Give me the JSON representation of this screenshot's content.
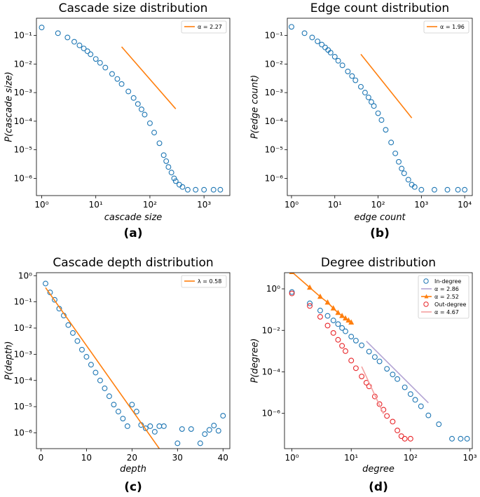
{
  "chart_data": [
    {
      "id": "a",
      "panel_label": "(a)",
      "type": "scatter",
      "title": "Cascade size distribution",
      "xlabel": "cascade size",
      "ylabel": "P(cascade size)",
      "xscale": "log",
      "yscale": "log",
      "xlim": [
        0.8,
        3000
      ],
      "ylim": [
        2.5e-07,
        0.4
      ],
      "xticks": [
        1,
        10,
        100,
        1000
      ],
      "xtick_labels": [
        "10⁰",
        "10¹",
        "10²",
        "10³"
      ],
      "yticks": [
        1e-06,
        1e-05,
        0.0001,
        0.001,
        0.01,
        0.1
      ],
      "ytick_labels": [
        "10⁻⁶",
        "10⁻⁵",
        "10⁻⁴",
        "10⁻³",
        "10⁻²",
        "10⁻¹"
      ],
      "legend": {
        "placement": "top-right",
        "entries": [
          {
            "label": "α = 2.27",
            "color": "#ff7f0e",
            "marker": "line"
          }
        ]
      },
      "series": [
        {
          "name": "empirical",
          "kind": "empirical",
          "color": "#1f77b4",
          "marker": "circle",
          "x": [
            1,
            2,
            3,
            4,
            5,
            6,
            7,
            8,
            10,
            12,
            15,
            20,
            25,
            30,
            40,
            50,
            60,
            70,
            80,
            100,
            120,
            150,
            180,
            200,
            220,
            250,
            280,
            300,
            350,
            400,
            500,
            700,
            1000,
            1500,
            2000
          ],
          "y": [
            0.19,
            0.12,
            0.085,
            0.06,
            0.045,
            0.035,
            0.028,
            0.022,
            0.015,
            0.011,
            0.0075,
            0.0045,
            0.003,
            0.002,
            0.0011,
            0.00065,
            0.0004,
            0.00026,
            0.00017,
            8.5e-05,
            4e-05,
            1.7e-05,
            6.5e-06,
            4e-06,
            2.5e-06,
            1.6e-06,
            1e-06,
            8e-07,
            6e-07,
            5e-07,
            4e-07,
            4e-07,
            4e-07,
            4e-07,
            4e-07
          ]
        },
        {
          "name": "power-law fit",
          "kind": "fit",
          "color": "#ff7f0e",
          "x": [
            30,
            300
          ],
          "y": [
            0.04,
            0.00027
          ]
        }
      ]
    },
    {
      "id": "b",
      "panel_label": "(b)",
      "type": "scatter",
      "title": "Edge count distribution",
      "xlabel": "edge count",
      "ylabel": "P(edge count)",
      "xscale": "log",
      "yscale": "log",
      "xlim": [
        0.8,
        15000
      ],
      "ylim": [
        2.5e-07,
        0.4
      ],
      "xticks": [
        1,
        10,
        100,
        1000,
        10000
      ],
      "xtick_labels": [
        "10⁰",
        "10¹",
        "10²",
        "10³",
        "10⁴"
      ],
      "yticks": [
        1e-06,
        1e-05,
        0.0001,
        0.001,
        0.01,
        0.1
      ],
      "ytick_labels": [
        "10⁻⁶",
        "10⁻⁵",
        "10⁻⁴",
        "10⁻³",
        "10⁻²",
        "10⁻¹"
      ],
      "legend": {
        "placement": "top-right",
        "entries": [
          {
            "label": "α = 1.96",
            "color": "#ff7f0e",
            "marker": "line"
          }
        ]
      },
      "series": [
        {
          "name": "empirical",
          "kind": "empirical",
          "color": "#1f77b4",
          "marker": "circle",
          "x": [
            1,
            2,
            3,
            4,
            5,
            6,
            7,
            8,
            10,
            12,
            15,
            20,
            25,
            30,
            40,
            50,
            60,
            70,
            80,
            100,
            120,
            150,
            200,
            250,
            300,
            350,
            400,
            500,
            600,
            700,
            1000,
            2000,
            4000,
            7000,
            10000
          ],
          "y": [
            0.2,
            0.12,
            0.085,
            0.062,
            0.048,
            0.038,
            0.031,
            0.025,
            0.018,
            0.013,
            0.009,
            0.0055,
            0.0038,
            0.0027,
            0.0016,
            0.001,
            0.00068,
            0.00047,
            0.00034,
            0.00019,
            0.00011,
            5e-05,
            1.8e-05,
            7.5e-06,
            3.8e-06,
            2.2e-06,
            1.5e-06,
            9e-07,
            6e-07,
            5e-07,
            4e-07,
            4e-07,
            4e-07,
            4e-07,
            4e-07
          ]
        },
        {
          "name": "power-law fit",
          "kind": "fit",
          "color": "#ff7f0e",
          "x": [
            40,
            600
          ],
          "y": [
            0.022,
            0.00013
          ]
        }
      ]
    },
    {
      "id": "c",
      "panel_label": "(c)",
      "type": "scatter",
      "title": "Cascade depth distribution",
      "xlabel": "depth",
      "ylabel": "P(depth)",
      "xscale": "linear",
      "yscale": "log",
      "xlim": [
        -1,
        41.5
      ],
      "ylim": [
        2.5e-07,
        1.3
      ],
      "xticks": [
        0,
        10,
        20,
        30,
        40
      ],
      "xtick_labels": [
        "0",
        "10",
        "20",
        "30",
        "40"
      ],
      "yticks": [
        1e-06,
        1e-05,
        0.0001,
        0.001,
        0.01,
        0.1,
        1
      ],
      "ytick_labels": [
        "10⁻⁶",
        "10⁻⁵",
        "10⁻⁴",
        "10⁻³",
        "10⁻²",
        "10⁻¹",
        "10⁰"
      ],
      "legend": {
        "placement": "top-right",
        "entries": [
          {
            "label": "λ = 0.58",
            "color": "#ff7f0e",
            "marker": "line"
          }
        ]
      },
      "series": [
        {
          "name": "empirical",
          "kind": "empirical",
          "color": "#1f77b4",
          "marker": "circle",
          "x": [
            1,
            2,
            3,
            4,
            5,
            6,
            7,
            8,
            9,
            10,
            11,
            12,
            13,
            14,
            15,
            16,
            17,
            18,
            19,
            20,
            21,
            22,
            23,
            24,
            25,
            26,
            27,
            30,
            31,
            33,
            35,
            36,
            37,
            38,
            39,
            40
          ],
          "y": [
            0.5,
            0.23,
            0.12,
            0.055,
            0.03,
            0.013,
            0.0065,
            0.0032,
            0.0015,
            0.0008,
            0.0004,
            0.0002,
            0.0001,
            5e-05,
            2.5e-05,
            1.2e-05,
            6.5e-06,
            3.5e-06,
            1.8e-06,
            1.2e-05,
            6.5e-06,
            2e-06,
            1.5e-06,
            1.8e-06,
            1.1e-06,
            1.8e-06,
            1.8e-06,
            4e-07,
            1.4e-06,
            1.4e-06,
            4e-07,
            9e-07,
            1.3e-06,
            1.9e-06,
            1.2e-06,
            4.5e-06
          ]
        },
        {
          "name": "exponential fit",
          "kind": "fit",
          "color": "#ff7f0e",
          "x": [
            1,
            26
          ],
          "y": [
            0.35,
            2.5e-07
          ]
        }
      ]
    },
    {
      "id": "d",
      "panel_label": "(d)",
      "type": "scatter",
      "title": "Degree distribution",
      "xlabel": "degree",
      "ylabel": "P(degree)",
      "xscale": "log",
      "yscale": "log",
      "xlim": [
        0.75,
        1100
      ],
      "ylim": [
        2e-08,
        6
      ],
      "xticks": [
        1,
        10,
        100,
        1000
      ],
      "xtick_labels": [
        "10⁰",
        "10¹",
        "10²",
        "10³"
      ],
      "yticks": [
        1e-06,
        0.0001,
        0.01,
        1
      ],
      "ytick_labels": [
        "10⁻⁶",
        "10⁻⁴",
        "10⁻²",
        "10⁰"
      ],
      "legend": {
        "placement": "top-right",
        "entries": [
          {
            "label": "In-degree",
            "color": "#1f77b4",
            "marker": "circle"
          },
          {
            "label": "α = 2.86",
            "color": "#b3a4d4",
            "marker": "line"
          },
          {
            "label": "α = 2.52",
            "color": "#ff7f0e",
            "marker": "triangle-line"
          },
          {
            "label": "Out-degree",
            "color": "#e8262a",
            "marker": "circle"
          },
          {
            "label": "α = 4.67",
            "color": "#f4a0a0",
            "marker": "line"
          }
        ]
      },
      "series": [
        {
          "name": "In-degree",
          "kind": "empirical",
          "color": "#1f77b4",
          "marker": "circle",
          "x": [
            1,
            2,
            3,
            4,
            5,
            6,
            7,
            8,
            10,
            12,
            15,
            20,
            25,
            30,
            40,
            50,
            60,
            80,
            100,
            120,
            150,
            200,
            300,
            500,
            700,
            900
          ],
          "y": [
            0.7,
            0.2,
            0.09,
            0.05,
            0.03,
            0.02,
            0.013,
            0.009,
            0.005,
            0.0032,
            0.0019,
            0.00095,
            0.00052,
            0.00032,
            0.00014,
            7.5e-05,
            4.5e-05,
            1.8e-05,
            8.5e-06,
            4.5e-06,
            2.2e-06,
            8e-07,
            3e-07,
            6e-08,
            6e-08,
            6e-08
          ]
        },
        {
          "name": "α = 2.86",
          "kind": "fit",
          "color": "#b3a4d4",
          "x": [
            18,
            200
          ],
          "y": [
            0.003,
            3.2e-06
          ]
        },
        {
          "name": "α = 2.52",
          "kind": "fit-markers",
          "color": "#ff7f0e",
          "marker": "triangle",
          "x": [
            1,
            2,
            3,
            4,
            5,
            6,
            7,
            8,
            9,
            10
          ],
          "y": [
            6.5,
            1.15,
            0.42,
            0.22,
            0.115,
            0.07,
            0.05,
            0.038,
            0.03,
            0.024
          ]
        },
        {
          "name": "Out-degree",
          "kind": "empirical",
          "color": "#e8262a",
          "marker": "circle",
          "x": [
            1,
            2,
            3,
            4,
            5,
            6,
            7,
            8,
            10,
            12,
            15,
            18,
            20,
            25,
            30,
            35,
            40,
            50,
            60,
            70,
            80,
            100
          ],
          "y": [
            0.6,
            0.15,
            0.045,
            0.017,
            0.0075,
            0.0035,
            0.0018,
            0.001,
            0.00035,
            0.00015,
            6e-05,
            3e-05,
            2e-05,
            6.5e-06,
            2.8e-06,
            1.5e-06,
            7.5e-07,
            4e-07,
            1.5e-07,
            8e-08,
            6e-08,
            6e-08
          ]
        },
        {
          "name": "α = 4.67",
          "kind": "fit",
          "color": "#f4a0a0",
          "x": [
            15,
            35
          ],
          "y": [
            0.00018,
            9.5e-07
          ]
        }
      ]
    }
  ]
}
